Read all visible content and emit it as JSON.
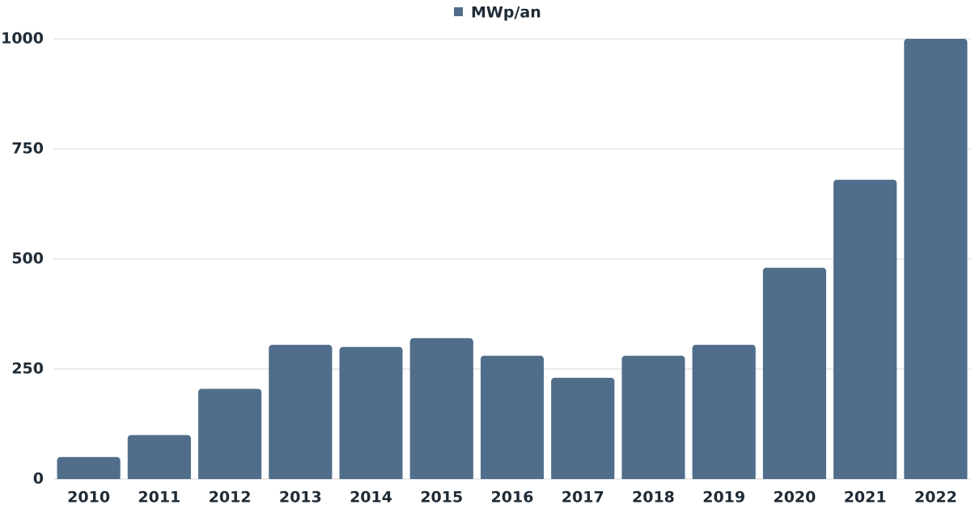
{
  "chart_data": {
    "type": "bar",
    "categories": [
      "2010",
      "2011",
      "2012",
      "2013",
      "2014",
      "2015",
      "2016",
      "2017",
      "2018",
      "2019",
      "2020",
      "2021",
      "2022"
    ],
    "series": [
      {
        "name": "MWp/an",
        "color": "#506e8b",
        "values": [
          50,
          100,
          205,
          305,
          300,
          320,
          280,
          230,
          280,
          305,
          480,
          680,
          1000
        ]
      }
    ],
    "ylim": [
      0,
      1000
    ],
    "yticks": [
      0,
      250,
      500,
      750,
      1000
    ],
    "grid": true,
    "legend": "top"
  }
}
